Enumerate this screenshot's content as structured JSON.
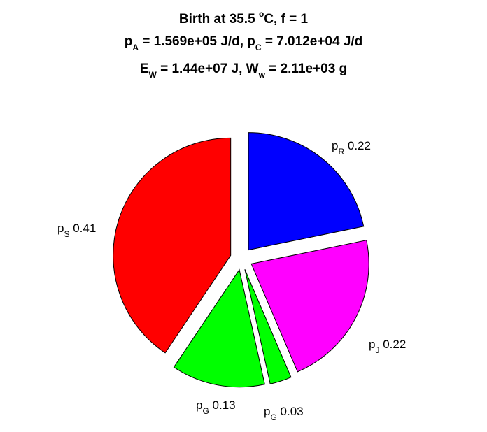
{
  "chart_data": {
    "type": "pie",
    "title_lines": [
      [
        {
          "t": "Birth at 35.5 "
        },
        {
          "t": "o",
          "s": "sup"
        },
        {
          "t": "C, f = 1"
        }
      ],
      [
        {
          "t": "p"
        },
        {
          "t": "A",
          "s": "sub"
        },
        {
          "t": " = 1.569e+05 J/d, p"
        },
        {
          "t": "C",
          "s": "sub"
        },
        {
          "t": " = 7.012e+04 J/d"
        }
      ],
      [
        {
          "t": "E"
        },
        {
          "t": "W",
          "s": "sub"
        },
        {
          "t": " = 1.44e+07 J, W"
        },
        {
          "t": "w",
          "s": "sub"
        },
        {
          "t": " = 2.11e+03 g"
        }
      ]
    ],
    "slices": [
      {
        "sym": "p",
        "sub": "R",
        "label": "0.22",
        "value": 0.22,
        "color": "#0000ff"
      },
      {
        "sym": "p",
        "sub": "J",
        "label": "0.22",
        "value": 0.22,
        "color": "#ff00ff"
      },
      {
        "sym": "p",
        "sub": "G",
        "label": "0.03",
        "value": 0.03,
        "color": "#00ff00"
      },
      {
        "sym": "p",
        "sub": "G",
        "label": "0.13",
        "value": 0.13,
        "color": "#00ff00"
      },
      {
        "sym": "p",
        "sub": "S",
        "label": "0.41",
        "value": 0.41,
        "color": "#ff0000"
      }
    ],
    "exploded": true,
    "start": "12 o'clock",
    "direction": "clockwise"
  }
}
